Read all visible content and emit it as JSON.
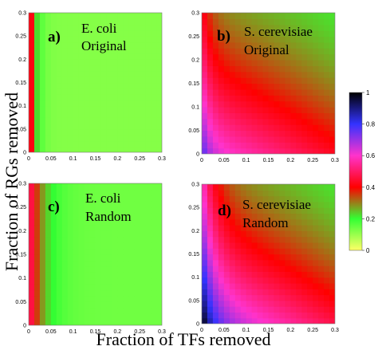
{
  "figure": {
    "xlabel": "Fraction of TFs removed",
    "ylabel": "Fraction of RGs removed"
  },
  "colorbar": {
    "ticks": [
      "0",
      "0.2",
      "0.4",
      "0.6",
      "0.8",
      "1"
    ],
    "colors": [
      "#ffff66",
      "#33ff33",
      "#ff0000",
      "#ff33cc",
      "#3333ff",
      "#000000"
    ]
  },
  "chart_data": [
    {
      "type": "heatmap",
      "id": "a",
      "tag": "a)",
      "title_lines": [
        "E. coli",
        "Original"
      ],
      "xlim": [
        0,
        0.3
      ],
      "ylim": [
        0,
        0.3
      ],
      "xticks": [
        "0",
        "0.05",
        "0.1",
        "0.15",
        "0.2",
        "0.25",
        "0.3"
      ],
      "yticks": [
        "0",
        "0.05",
        "0.1",
        "0.15",
        "0.2",
        "0.25",
        "0.3"
      ],
      "value_model": {
        "base": 0.12,
        "edge_peak": 0.5,
        "edge_width": 0.012,
        "diag": 0.0
      }
    },
    {
      "type": "heatmap",
      "id": "b",
      "tag": "b)",
      "title_lines": [
        "S. cerevisiae",
        "Original"
      ],
      "xlim": [
        0,
        0.3
      ],
      "ylim": [
        0,
        0.3
      ],
      "xticks": [
        "0",
        "0.05",
        "0.1",
        "0.15",
        "0.2",
        "0.25",
        "0.3"
      ],
      "yticks": [
        "0",
        "0.05",
        "0.1",
        "0.15",
        "0.2",
        "0.25",
        "0.3"
      ],
      "value_model": {
        "base": 0.22,
        "edge_peak": 0.15,
        "edge_width": 0.02,
        "diag": 0.42
      }
    },
    {
      "type": "heatmap",
      "id": "c",
      "tag": "c)",
      "title_lines": [
        "E. coli",
        "Random"
      ],
      "xlim": [
        0,
        0.3
      ],
      "ylim": [
        0,
        0.3
      ],
      "xticks": [
        "0",
        "0.05",
        "0.1",
        "0.15",
        "0.2",
        "0.25",
        "0.3"
      ],
      "yticks": [
        "0",
        "0.05",
        "0.1",
        "0.15",
        "0.2",
        "0.25",
        "0.3"
      ],
      "value_model": {
        "base": 0.14,
        "edge_peak": 0.4,
        "edge_width": 0.03,
        "diag": 0.0
      }
    },
    {
      "type": "heatmap",
      "id": "d",
      "tag": "d)",
      "title_lines": [
        "S. cerevisiae",
        "Random"
      ],
      "xlim": [
        0,
        0.3
      ],
      "ylim": [
        0,
        0.3
      ],
      "xticks": [
        "0",
        "0.05",
        "0.1",
        "0.15",
        "0.2",
        "0.25",
        "0.3"
      ],
      "yticks": [
        "0",
        "0.05",
        "0.1",
        "0.15",
        "0.2",
        "0.25",
        "0.3"
      ],
      "value_model": {
        "base": 0.22,
        "edge_peak": 0.3,
        "edge_width": 0.03,
        "diag": 0.5
      }
    }
  ]
}
